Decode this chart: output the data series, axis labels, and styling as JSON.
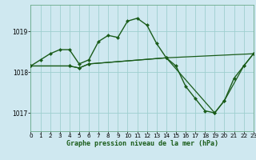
{
  "title": "Graphe pression niveau de la mer (hPa)",
  "background_color": "#cfe8f0",
  "grid_color": "#9ecfcf",
  "line_color": "#1a5c1a",
  "marker_color": "#1a5c1a",
  "xlim": [
    0,
    23
  ],
  "ylim": [
    1016.55,
    1019.65
  ],
  "yticks": [
    1017,
    1018,
    1019
  ],
  "xticks": [
    0,
    1,
    2,
    3,
    4,
    5,
    6,
    7,
    8,
    9,
    10,
    11,
    12,
    13,
    14,
    15,
    16,
    17,
    18,
    19,
    20,
    21,
    22,
    23
  ],
  "series": [
    {
      "x": [
        0,
        1,
        2,
        3,
        4,
        5,
        6,
        7,
        8,
        9,
        10,
        11,
        12,
        13,
        14,
        15,
        16,
        17,
        18,
        19,
        20,
        21,
        22,
        23
      ],
      "y": [
        1018.15,
        1018.3,
        1018.45,
        1018.55,
        1018.55,
        1018.2,
        1018.3,
        1018.75,
        1018.9,
        1018.85,
        1019.25,
        1019.32,
        1019.15,
        1018.7,
        1018.35,
        1018.15,
        1017.65,
        1017.35,
        1017.05,
        1017.0,
        1017.3,
        1017.85,
        1018.15,
        1018.45
      ],
      "lw": 1.0,
      "ls": "-"
    },
    {
      "x": [
        0,
        4,
        5,
        6,
        14,
        23
      ],
      "y": [
        1018.15,
        1018.15,
        1018.1,
        1018.2,
        1018.35,
        1018.45
      ],
      "lw": 0.9,
      "ls": "-"
    },
    {
      "x": [
        0,
        4,
        5,
        6,
        14,
        19,
        20,
        22,
        23
      ],
      "y": [
        1018.15,
        1018.15,
        1018.1,
        1018.2,
        1018.35,
        1017.0,
        1017.3,
        1018.15,
        1018.45
      ],
      "lw": 0.9,
      "ls": "-"
    }
  ]
}
